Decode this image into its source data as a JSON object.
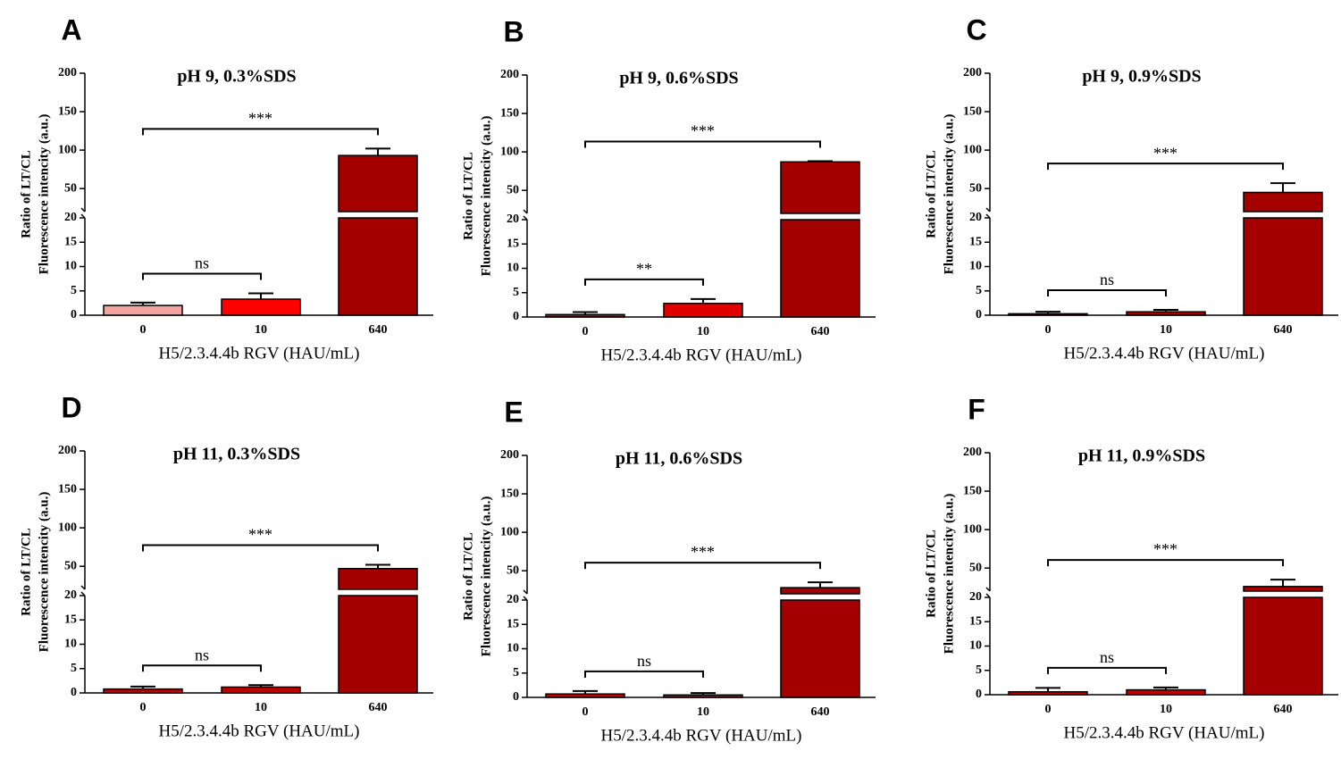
{
  "chart_data": [
    {
      "type": "bar",
      "panel": "A",
      "title": "pH 9, 0.3%SDS",
      "ylabel": [
        "Ratio of LT/CL",
        "Fluorescence intencity (a.u.)"
      ],
      "xlabel": "H5/2.3.4.4b RGV (HAU/mL)",
      "categories": [
        "0",
        "10",
        "640"
      ],
      "values": [
        2,
        3.3,
        93
      ],
      "errors": [
        0.6,
        1.2,
        9
      ],
      "colors": [
        "#f4a3a3",
        "#ff0000",
        "#a50000"
      ],
      "segments": [
        {
          "ylim": [
            0,
            20
          ],
          "yticks": [
            0,
            5,
            10,
            15,
            20
          ]
        },
        {
          "ylim": [
            20,
            200
          ],
          "yticks": [
            50,
            100,
            150,
            200
          ]
        }
      ],
      "comparisons": [
        {
          "groups": [
            0,
            2
          ],
          "label": "***"
        },
        {
          "groups": [
            0,
            1
          ],
          "label": "ns"
        }
      ]
    },
    {
      "type": "bar",
      "panel": "B",
      "title": "pH 9, 0.6%SDS",
      "ylabel": [
        "Ratio of LT/CL",
        "Fluorescence intencity (a.u.)"
      ],
      "xlabel": "H5/2.3.4.4b RGV (HAU/mL)",
      "categories": [
        "0",
        "10",
        "640"
      ],
      "values": [
        0.5,
        2.8,
        87
      ],
      "errors": [
        0.5,
        0.9,
        1
      ],
      "colors": [
        "#c00000",
        "#e00000",
        "#a50000"
      ],
      "segments": [
        {
          "ylim": [
            0,
            20
          ],
          "yticks": [
            0,
            5,
            10,
            15,
            20
          ]
        },
        {
          "ylim": [
            20,
            200
          ],
          "yticks": [
            50,
            100,
            150,
            200
          ]
        }
      ],
      "comparisons": [
        {
          "groups": [
            0,
            2
          ],
          "label": "***"
        },
        {
          "groups": [
            0,
            1
          ],
          "label": "**"
        }
      ]
    },
    {
      "type": "bar",
      "panel": "C",
      "title": "pH 9, 0.9%SDS",
      "ylabel": [
        "Ratio of LT/CL",
        "Fluorescence intencity (a.u.)"
      ],
      "xlabel": "H5/2.3.4.4b RGV (HAU/mL)",
      "categories": [
        "0",
        "10",
        "640"
      ],
      "values": [
        0.3,
        0.7,
        45
      ],
      "errors": [
        0.4,
        0.4,
        12
      ],
      "colors": [
        "#a50000",
        "#a50000",
        "#a50000"
      ],
      "segments": [
        {
          "ylim": [
            0,
            20
          ],
          "yticks": [
            0,
            5,
            10,
            15,
            20
          ]
        },
        {
          "ylim": [
            20,
            200
          ],
          "yticks": [
            50,
            100,
            150,
            200
          ]
        }
      ],
      "comparisons": [
        {
          "groups": [
            0,
            2
          ],
          "label": "***"
        },
        {
          "groups": [
            0,
            1
          ],
          "label": "ns"
        }
      ]
    },
    {
      "type": "bar",
      "panel": "D",
      "title": "pH 11, 0.3%SDS",
      "ylabel": [
        "Ratio of LT/CL",
        "Fluorescence intencity (a.u.)"
      ],
      "xlabel": "H5/2.3.4.4b RGV (HAU/mL)",
      "categories": [
        "0",
        "10",
        "640"
      ],
      "values": [
        0.8,
        1.2,
        47
      ],
      "errors": [
        0.5,
        0.4,
        5
      ],
      "colors": [
        "#c00000",
        "#c00000",
        "#a50000"
      ],
      "segments": [
        {
          "ylim": [
            0,
            20
          ],
          "yticks": [
            0,
            5,
            10,
            15,
            20
          ]
        },
        {
          "ylim": [
            20,
            200
          ],
          "yticks": [
            50,
            100,
            150,
            200
          ]
        }
      ],
      "comparisons": [
        {
          "groups": [
            0,
            2
          ],
          "label": "***"
        },
        {
          "groups": [
            0,
            1
          ],
          "label": "ns"
        }
      ]
    },
    {
      "type": "bar",
      "panel": "E",
      "title": "pH 11, 0.6%SDS",
      "ylabel": [
        "Ratio of LT/CL",
        "Fluorescence intencity (a.u.)"
      ],
      "xlabel": "H5/2.3.4.4b RGV (HAU/mL)",
      "categories": [
        "0",
        "10",
        "640"
      ],
      "values": [
        0.7,
        0.5,
        28
      ],
      "errors": [
        0.6,
        0.4,
        7
      ],
      "colors": [
        "#c00000",
        "#c00000",
        "#a50000"
      ],
      "segments": [
        {
          "ylim": [
            0,
            20
          ],
          "yticks": [
            0,
            5,
            10,
            15,
            20
          ]
        },
        {
          "ylim": [
            20,
            200
          ],
          "yticks": [
            50,
            100,
            150,
            200
          ]
        }
      ],
      "comparisons": [
        {
          "groups": [
            0,
            2
          ],
          "label": "***"
        },
        {
          "groups": [
            0,
            1
          ],
          "label": "ns"
        }
      ]
    },
    {
      "type": "bar",
      "panel": "F",
      "title": "pH 11, 0.9%SDS",
      "ylabel": [
        "Ratio of LT/CL",
        "Fluorescence intencity (a.u.)"
      ],
      "xlabel": "H5/2.3.4.4b RGV (HAU/mL)",
      "categories": [
        "0",
        "10",
        "640"
      ],
      "values": [
        0.6,
        1.0,
        26
      ],
      "errors": [
        0.8,
        0.5,
        9
      ],
      "colors": [
        "#c00000",
        "#c00000",
        "#a50000"
      ],
      "segments": [
        {
          "ylim": [
            0,
            20
          ],
          "yticks": [
            0,
            5,
            10,
            15,
            20
          ]
        },
        {
          "ylim": [
            20,
            200
          ],
          "yticks": [
            50,
            100,
            150,
            200
          ]
        }
      ],
      "comparisons": [
        {
          "groups": [
            0,
            2
          ],
          "label": "***"
        },
        {
          "groups": [
            0,
            1
          ],
          "label": "ns"
        }
      ]
    }
  ]
}
